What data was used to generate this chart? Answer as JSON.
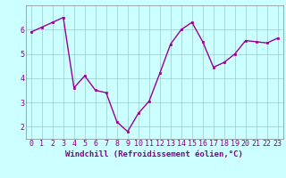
{
  "x": [
    0,
    1,
    2,
    3,
    4,
    5,
    6,
    7,
    8,
    9,
    10,
    11,
    12,
    13,
    14,
    15,
    16,
    17,
    18,
    19,
    20,
    21,
    22,
    23
  ],
  "y": [
    5.9,
    6.1,
    6.3,
    6.5,
    3.6,
    4.1,
    3.5,
    3.4,
    2.2,
    1.8,
    2.55,
    3.05,
    4.2,
    5.4,
    6.0,
    6.3,
    5.5,
    4.45,
    4.65,
    5.0,
    5.55,
    5.5,
    5.45,
    5.65
  ],
  "line_color": "#990099",
  "marker": "s",
  "markersize": 2,
  "linewidth": 1.0,
  "bg_color": "#ccffff",
  "grid_color": "#99cccc",
  "xlabel": "Windchill (Refroidissement éolien,°C)",
  "xlabel_color": "#880088",
  "xlabel_fontsize": 6.5,
  "tick_color": "#880088",
  "tick_fontsize": 6,
  "ylim": [
    1.5,
    7.0
  ],
  "xlim": [
    -0.5,
    23.5
  ],
  "yticks": [
    2,
    3,
    4,
    5,
    6
  ],
  "xticks": [
    0,
    1,
    2,
    3,
    4,
    5,
    6,
    7,
    8,
    9,
    10,
    11,
    12,
    13,
    14,
    15,
    16,
    17,
    18,
    19,
    20,
    21,
    22,
    23
  ]
}
